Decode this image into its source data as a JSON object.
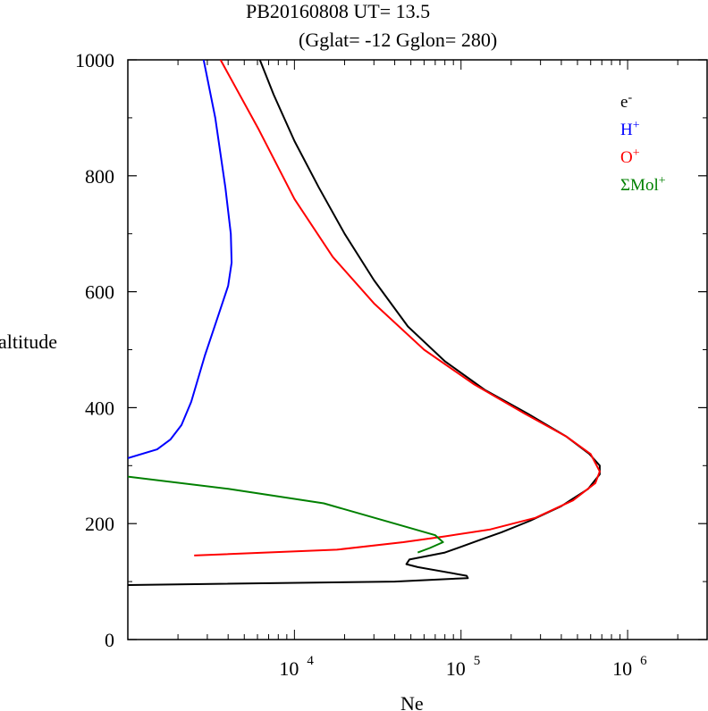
{
  "title_line1": "PB20160808   UT=  13.5",
  "title_line2": "(Gglat= -12   Gglon=  280)",
  "chart_data": {
    "type": "line",
    "title": "PB20160808   UT=  13.5",
    "subtitle": "(Gglat= -12   Gglon=  280)",
    "xlabel": "Ne",
    "ylabel": "altitude",
    "x_scale": "log",
    "xlim": [
      1000,
      3000000
    ],
    "ylim": [
      0,
      1000
    ],
    "x_ticks": [
      {
        "base": "10",
        "exp": "4",
        "value": 10000
      },
      {
        "base": "10",
        "exp": "5",
        "value": 100000
      },
      {
        "base": "10",
        "exp": "6",
        "value": 1000000
      }
    ],
    "y_ticks": [
      "0",
      "200",
      "400",
      "600",
      "800",
      "1000"
    ],
    "grid": false,
    "legend_position": "top-right",
    "series": [
      {
        "name": "e-",
        "label_base": "e",
        "label_sup": "-",
        "color": "#000000",
        "points": [
          [
            1000,
            94
          ],
          [
            40000,
            100
          ],
          [
            110000,
            106
          ],
          [
            108000,
            110
          ],
          [
            55000,
            125
          ],
          [
            47000,
            130
          ],
          [
            49000,
            138
          ],
          [
            80000,
            150
          ],
          [
            100000,
            160
          ],
          [
            130000,
            172
          ],
          [
            175000,
            185
          ],
          [
            260000,
            205
          ],
          [
            400000,
            230
          ],
          [
            580000,
            260
          ],
          [
            680000,
            285
          ],
          [
            680000,
            300
          ],
          [
            590000,
            320
          ],
          [
            430000,
            350
          ],
          [
            250000,
            390
          ],
          [
            140000,
            430
          ],
          [
            80000,
            480
          ],
          [
            48000,
            540
          ],
          [
            30000,
            620
          ],
          [
            20000,
            700
          ],
          [
            14000,
            780
          ],
          [
            10000,
            860
          ],
          [
            7500,
            940
          ],
          [
            6200,
            1000
          ]
        ]
      },
      {
        "name": "H+",
        "label_base": "H",
        "label_sup": "+",
        "color": "#0000ff",
        "points": [
          [
            1000,
            313
          ],
          [
            1500,
            328
          ],
          [
            1800,
            345
          ],
          [
            2100,
            370
          ],
          [
            2400,
            410
          ],
          [
            2900,
            490
          ],
          [
            3500,
            560
          ],
          [
            4000,
            610
          ],
          [
            4200,
            650
          ],
          [
            4150,
            700
          ],
          [
            3850,
            780
          ],
          [
            3350,
            900
          ],
          [
            2850,
            1000
          ]
        ]
      },
      {
        "name": "O+",
        "label_base": "O",
        "label_sup": "+",
        "color": "#ff0000",
        "points": [
          [
            2500,
            145
          ],
          [
            18000,
            155
          ],
          [
            45000,
            168
          ],
          [
            80000,
            178
          ],
          [
            150000,
            190
          ],
          [
            280000,
            210
          ],
          [
            470000,
            240
          ],
          [
            640000,
            270
          ],
          [
            680000,
            290
          ],
          [
            600000,
            320
          ],
          [
            430000,
            350
          ],
          [
            240000,
            390
          ],
          [
            120000,
            440
          ],
          [
            60000,
            500
          ],
          [
            30000,
            580
          ],
          [
            17000,
            660
          ],
          [
            10000,
            760
          ],
          [
            6100,
            880
          ],
          [
            3600,
            1000
          ]
        ]
      },
      {
        "name": "ΣMol+",
        "label_base": "ΣMol",
        "label_sup": "+",
        "color": "#008000",
        "points": [
          [
            1000,
            281
          ],
          [
            4000,
            260
          ],
          [
            15000,
            235
          ],
          [
            40000,
            200
          ],
          [
            70000,
            180
          ],
          [
            78000,
            168
          ],
          [
            65000,
            158
          ],
          [
            55000,
            150
          ]
        ]
      }
    ]
  }
}
